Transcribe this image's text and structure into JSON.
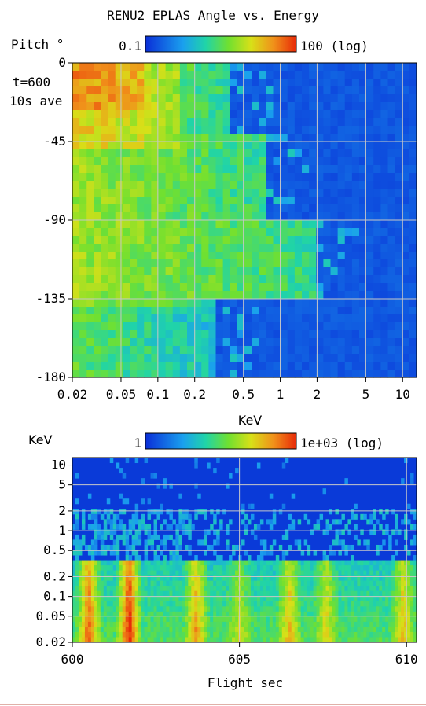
{
  "title": "RENU2 EPLAS Angle vs. Energy",
  "chart_data": [
    {
      "type": "heatmap",
      "title": "RENU2 EPLAS Angle vs. Energy",
      "xlabel": "KeV",
      "ylabel": "Pitch °",
      "x_scale": "log",
      "xlim": [
        0.02,
        13
      ],
      "ylim": [
        -180,
        0
      ],
      "x_ticks": [
        0.02,
        0.05,
        0.1,
        0.2,
        0.5,
        1,
        2,
        5,
        10
      ],
      "x_tick_labels": [
        "0.02",
        "0.05",
        "0.1",
        "0.2",
        "0.5",
        "1",
        "2",
        "5",
        "10"
      ],
      "y_ticks": [
        0,
        -45,
        -90,
        -135,
        -180
      ],
      "y_tick_labels": [
        "0",
        "-45",
        "-90",
        "-135",
        "-180"
      ],
      "annotations": [
        "t=600",
        "10s ave"
      ],
      "colorbar": {
        "min_label": "0.1",
        "max_label": "100 (log)",
        "scale": "log"
      },
      "grid": true
    },
    {
      "type": "heatmap",
      "xlabel": "Flight sec",
      "ylabel": "KeV",
      "y_scale": "log",
      "xlim": [
        600,
        610.3
      ],
      "ylim": [
        0.02,
        13
      ],
      "x_ticks": [
        600,
        605,
        610
      ],
      "x_tick_labels": [
        "600",
        "605",
        "610"
      ],
      "y_ticks": [
        10,
        5,
        2,
        1,
        0.5,
        0.2,
        0.1,
        0.05,
        0.02
      ],
      "y_tick_labels": [
        "10",
        "5",
        "2",
        "1",
        "0.5",
        "0.2",
        "0.1",
        "0.05",
        "0.02"
      ],
      "colorbar": {
        "min_label": "1",
        "max_label": "1e+03 (log)",
        "scale": "log"
      },
      "grid": true
    }
  ]
}
